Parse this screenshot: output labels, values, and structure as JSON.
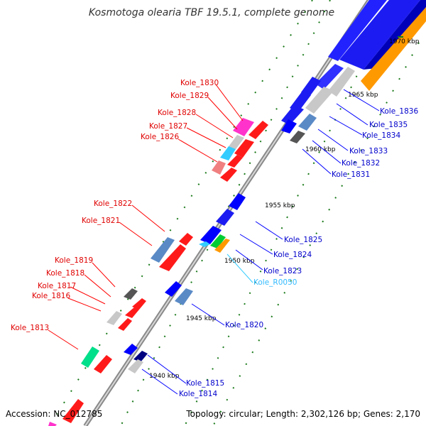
{
  "title": "Kosmotoga olearia TBF 19.5.1, complete genome",
  "accession": "Accession: NC_012785",
  "topology": "Topology: circular; Length: 2,302,126 bp; Genes: 2,170",
  "colors": {
    "outer_strand": "#0000ff",
    "inner_strand": "#ff0000",
    "backbone": "#9a9a9a",
    "ruler": "#1a7a1a",
    "rna": "#33ccff"
  },
  "kbp_ticks": [
    {
      "label": "1970 kbp"
    },
    {
      "label": "1965 kbp"
    },
    {
      "label": "1960 kbp"
    },
    {
      "label": "1955 kbp"
    },
    {
      "label": "1950 kbp"
    },
    {
      "label": "1945 kbp"
    },
    {
      "label": "1940 kbp"
    }
  ],
  "left_labels": [
    {
      "text": "Kole_1830"
    },
    {
      "text": "Kole_1829"
    },
    {
      "text": "Kole_1828"
    },
    {
      "text": "Kole_1827"
    },
    {
      "text": "Kole_1826"
    },
    {
      "text": "Kole_1822"
    },
    {
      "text": "Kole_1821"
    },
    {
      "text": "Kole_1819"
    },
    {
      "text": "Kole_1818"
    },
    {
      "text": "Kole_1817"
    },
    {
      "text": "Kole_1816"
    },
    {
      "text": "Kole_1813"
    }
  ],
  "right_labels": [
    {
      "text": "Kole_1836"
    },
    {
      "text": "Kole_1835"
    },
    {
      "text": "Kole_1834"
    },
    {
      "text": "Kole_1833"
    },
    {
      "text": "Kole_1832"
    },
    {
      "text": "Kole_1831"
    },
    {
      "text": "Kole_1825"
    },
    {
      "text": "Kole_1824"
    },
    {
      "text": "Kole_1823"
    },
    {
      "text": "Kole_R0050"
    },
    {
      "text": "Kole_1820"
    },
    {
      "text": "Kole_1815"
    },
    {
      "text": "Kole_1814"
    }
  ]
}
